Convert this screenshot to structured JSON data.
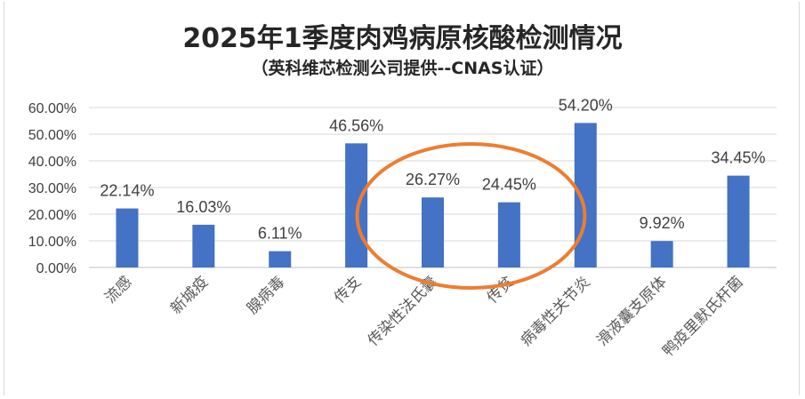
{
  "chart_data": {
    "type": "bar",
    "title": "2025年1季度肉鸡病原核酸检测情况",
    "subtitle": "（英科维芯检测公司提供--CNAS认证）",
    "categories": [
      "流感",
      "新城疫",
      "腺病毒",
      "传支",
      "传染性法氏囊",
      "传贫",
      "病毒性关节炎",
      "滑液囊支原体",
      "鸭疫里默氏杆菌"
    ],
    "values": [
      22.14,
      16.03,
      6.11,
      46.56,
      26.27,
      24.45,
      54.2,
      9.92,
      34.45
    ],
    "data_labels": [
      "22.14%",
      "16.03%",
      "6.11%",
      "46.56%",
      "26.27%",
      "24.45%",
      "54.20%",
      "9.92%",
      "34.45%"
    ],
    "y_ticks": [
      "0.00%",
      "10.00%",
      "20.00%",
      "30.00%",
      "40.00%",
      "50.00%",
      "60.00%"
    ],
    "ylim": [
      0,
      60
    ],
    "grid": true,
    "bar_color": "#4472c4",
    "highlight_color": "#ed7d31",
    "highlighted_categories": [
      "传染性法氏囊",
      "传贫"
    ]
  }
}
